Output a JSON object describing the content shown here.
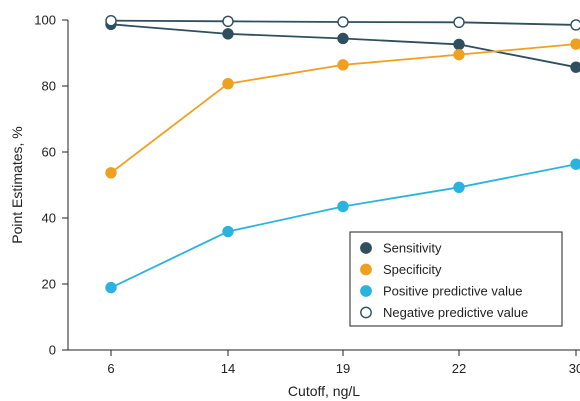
{
  "chart_data": {
    "type": "line",
    "xlabel": "Cutoff, ng/L",
    "ylabel": "Point Estimates, %",
    "categories": [
      "6",
      "14",
      "19",
      "22",
      "30"
    ],
    "ylim": [
      0,
      100
    ],
    "yticks": [
      "0",
      "20",
      "40",
      "60",
      "80",
      "100"
    ],
    "grid": false,
    "legend_position": "bottom-right",
    "series": [
      {
        "name": "Sensitivity",
        "color": "#2f4f5f",
        "marker": "filled",
        "values": [
          98.7,
          95.8,
          94.4,
          92.6,
          85.7
        ]
      },
      {
        "name": "Specificity",
        "color": "#f0a020",
        "marker": "filled",
        "values": [
          53.7,
          80.7,
          86.4,
          89.5,
          92.7
        ]
      },
      {
        "name": "Positive predictive value",
        "color": "#2bb3e0",
        "marker": "filled",
        "values": [
          18.9,
          35.9,
          43.5,
          49.3,
          56.3
        ]
      },
      {
        "name": "Negative predictive value",
        "color": "#2f4f5f",
        "marker": "open",
        "values": [
          99.8,
          99.6,
          99.4,
          99.3,
          98.5
        ]
      }
    ]
  }
}
